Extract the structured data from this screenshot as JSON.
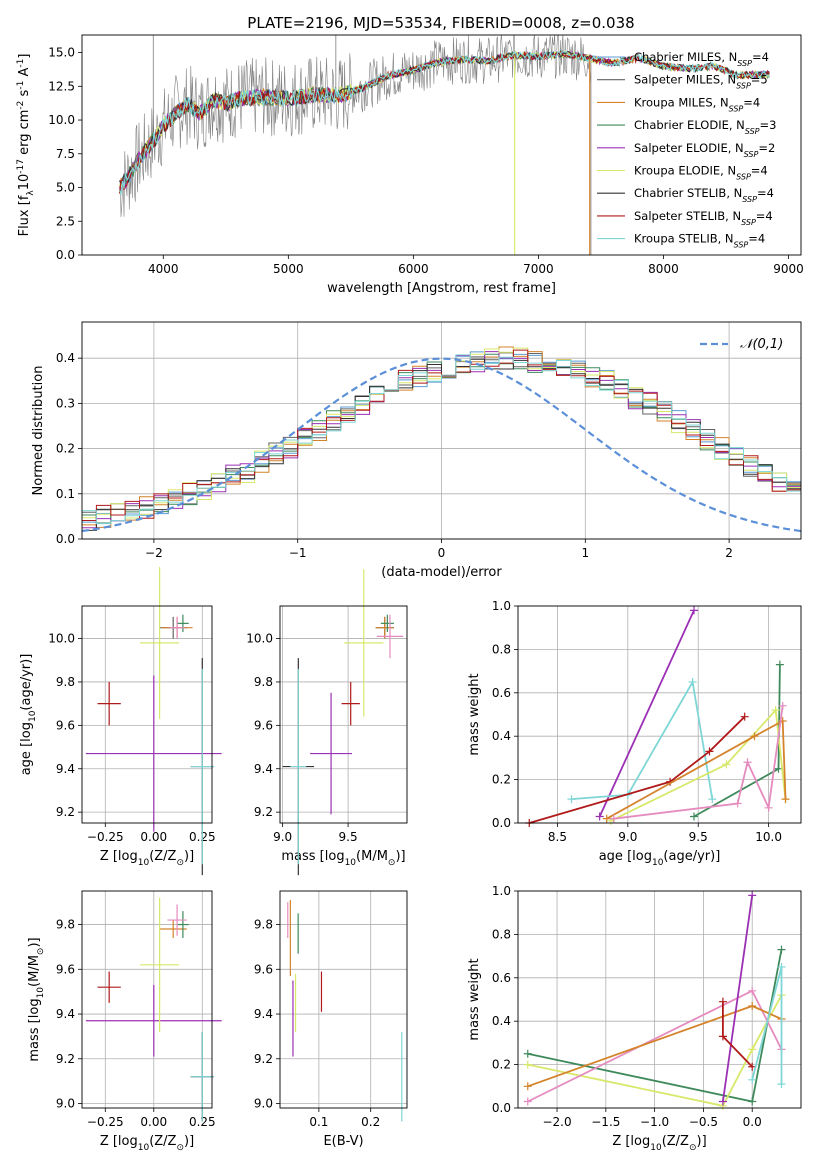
{
  "title": "PLATE=2196, MJD=53534, FIBERID=0008, z=0.038",
  "series": [
    {
      "name": "Chabrier MILES, N$_{SSP}$=4",
      "label": "Chabrier MILES, N",
      "nssp": "4",
      "color": "#5b9bd5"
    },
    {
      "name": "Salpeter MILES, N$_{SSP}$=5",
      "label": "Salpeter MILES, N",
      "nssp": "5",
      "color": "#636363"
    },
    {
      "name": "Kroupa MILES, N$_{SSP}$=4",
      "label": "Kroupa MILES, N",
      "nssp": "4",
      "color": "#d4832b"
    },
    {
      "name": "Chabrier ELODIE, N$_{SSP}$=3",
      "label": "Chabrier ELODIE, N",
      "nssp": "3",
      "color": "#3f8a5b"
    },
    {
      "name": "Salpeter ELODIE, N$_{SSP}$=2",
      "label": "Salpeter ELODIE, N",
      "nssp": "2",
      "color": "#9b30b4"
    },
    {
      "name": "Kroupa ELODIE, N$_{SSP}$=4",
      "label": "Kroupa ELODIE, N",
      "nssp": "4",
      "color": "#d8e86a"
    },
    {
      "name": "Chabrier STELIB, N$_{SSP}$=4",
      "label": "Chabrier STELIB, N",
      "nssp": "4",
      "color": "#333333"
    },
    {
      "name": "Salpeter STELIB, N$_{SSP}$=4",
      "label": "Salpeter STELIB, N",
      "nssp": "4",
      "color": "#b01a1a"
    },
    {
      "name": "Kroupa STELIB, N$_{SSP}$=4",
      "label": "Kroupa STELIB, N",
      "nssp": "4",
      "color": "#7fd6d6"
    }
  ],
  "colors": {
    "data": "#7f7f7f",
    "normal": "#5b8fd8",
    "mw_pink": "#e58bbf",
    "grid": "#b0b0b0"
  },
  "chart_data": [
    {
      "type": "line",
      "title": "PLATE=2196, MJD=53534, FIBERID=0008, z=0.038",
      "xlabel": "wavelength [Angstrom, rest frame]",
      "ylabel": "Flux [f$_\\lambda$10$^{-17}$ erg cm$^{-2}$ s$^{-1}$ A$^{-1}$]",
      "ylabel_display": "Flux [fλ10⁻¹⁷ erg cm⁻² s⁻¹ A⁻¹]",
      "xlim": [
        3350,
        9100
      ],
      "ylim": [
        0,
        16.3
      ],
      "xticks": [
        4000,
        5000,
        6000,
        7000,
        8000,
        9000
      ],
      "yticks": [
        "0.0",
        "2.5",
        "5.0",
        "7.5",
        "10.0",
        "12.5",
        "15.0"
      ],
      "continuum": {
        "x": [
          3650,
          3700,
          3800,
          3900,
          4000,
          4100,
          4200,
          4300,
          4400,
          4500,
          4600,
          4800,
          5000,
          5200,
          5400,
          5600,
          5800,
          6000,
          6200,
          6400,
          6600,
          6800,
          7000,
          7200,
          7400,
          7600,
          7800,
          8000,
          8200,
          8400,
          8600,
          8800
        ],
        "y": [
          5.0,
          5.5,
          7.0,
          8.2,
          9.5,
          10.5,
          11.2,
          10.5,
          11.5,
          11.2,
          11.6,
          11.7,
          11.6,
          11.9,
          11.8,
          12.4,
          13.3,
          13.7,
          14.3,
          14.5,
          14.4,
          14.8,
          14.7,
          14.9,
          14.6,
          14.2,
          14.6,
          14.0,
          13.8,
          14.0,
          13.3,
          13.4
        ]
      }
    },
    {
      "type": "bar",
      "xlabel": "(data-model)/error",
      "ylabel": "Normed distribution",
      "xlim": [
        -2.5,
        2.5
      ],
      "ylim": [
        0,
        0.48
      ],
      "xticks": [
        "−2",
        "−1",
        "0",
        "1",
        "2"
      ],
      "yticks": [
        "0.0",
        "0.1",
        "0.2",
        "0.3",
        "0.4"
      ],
      "bin_width": 0.1,
      "legend": "𝒩(0,1)",
      "values": [
        0.04,
        0.05,
        0.055,
        0.06,
        0.07,
        0.08,
        0.09,
        0.1,
        0.11,
        0.12,
        0.14,
        0.15,
        0.17,
        0.19,
        0.2,
        0.22,
        0.24,
        0.26,
        0.28,
        0.3,
        0.32,
        0.33,
        0.35,
        0.36,
        0.37,
        0.38,
        0.39,
        0.39,
        0.4,
        0.4,
        0.4,
        0.39,
        0.39,
        0.38,
        0.37,
        0.36,
        0.35,
        0.33,
        0.31,
        0.3,
        0.28,
        0.26,
        0.24,
        0.22,
        0.2,
        0.18,
        0.16,
        0.15,
        0.13,
        0.11
      ]
    },
    {
      "type": "scatter",
      "xlabel": "Z [log$_{10}$(Z/Z$_\\odot$)]",
      "ylabel": "age  [log$_{10}$(age/yr)]",
      "xlim": [
        -0.37,
        0.3
      ],
      "ylim": [
        9.15,
        10.15
      ],
      "xticks": [
        "−0.25",
        "0.00",
        "0.25"
      ],
      "yticks": [
        "9.2",
        "9.4",
        "9.6",
        "9.8",
        "10.0"
      ],
      "points": [
        {
          "s": 1,
          "x": 0.1,
          "y": 10.05,
          "xe": 0.07,
          "ye": 0.05
        },
        {
          "s": 2,
          "x": 0.12,
          "y": 10.05,
          "xe": 0.08,
          "ye": 0.05
        },
        {
          "s": 3,
          "x": 0.15,
          "y": 10.07,
          "xe": 0.03,
          "ye": 0.04
        },
        {
          "s": 4,
          "x": 0.0,
          "y": 9.47,
          "xe": 0.35,
          "ye": 0.36
        },
        {
          "s": 5,
          "x": 0.03,
          "y": 9.98,
          "xe": 0.1,
          "ye": 0.35
        },
        {
          "s": 6,
          "x": 0.25,
          "y": 9.41,
          "xe": 0.06,
          "ye": 0.5
        },
        {
          "s": 7,
          "x": -0.23,
          "y": 9.7,
          "xe": 0.06,
          "ye": 0.1
        },
        {
          "s": 8,
          "x": 0.25,
          "y": 9.41,
          "xe": 0.06,
          "ye": 0.45
        },
        {
          "s": 0,
          "x": 0.12,
          "y": 10.05,
          "xe": 0.04,
          "ye": 0.05
        }
      ]
    },
    {
      "type": "scatter",
      "xlabel": "mass [log$_{10}$(M/M$_\\odot$)]",
      "ylabel": "",
      "xlim": [
        8.98,
        9.95
      ],
      "ylim": [
        9.15,
        10.15
      ],
      "xticks": [
        "9.0",
        "9.5"
      ],
      "yticks": [
        "9.2",
        "9.4",
        "9.6",
        "9.8",
        "10.0"
      ],
      "points": [
        {
          "s": 1,
          "x": 9.78,
          "y": 10.05,
          "xe": 0.07,
          "ye": 0.05
        },
        {
          "s": 2,
          "x": 9.78,
          "y": 10.05,
          "xe": 0.07,
          "ye": 0.05
        },
        {
          "s": 3,
          "x": 9.8,
          "y": 10.07,
          "xe": 0.05,
          "ye": 0.04
        },
        {
          "s": 4,
          "x": 9.37,
          "y": 9.47,
          "xe": 0.16,
          "ye": 0.28
        },
        {
          "s": 5,
          "x": 9.62,
          "y": 9.98,
          "xe": 0.15,
          "ye": 0.34
        },
        {
          "s": 6,
          "x": 9.12,
          "y": 9.41,
          "xe": 0.12,
          "ye": 0.5
        },
        {
          "s": 7,
          "x": 9.52,
          "y": 9.7,
          "xe": 0.07,
          "ye": 0.1
        },
        {
          "s": 8,
          "x": 9.12,
          "y": 9.41,
          "xe": 0.06,
          "ye": 0.45
        },
        {
          "s": 0,
          "x": 9.82,
          "y": 10.01,
          "xe": 0.1,
          "ye": 0.1
        }
      ]
    },
    {
      "type": "scatter",
      "xlabel": "age  [log$_{10}$(age/yr)]",
      "ylabel": "mass weight",
      "xlim": [
        8.22,
        10.23
      ],
      "ylim": [
        0,
        1
      ],
      "xticks": [
        "8.5",
        "9.0",
        "9.5",
        "10.0"
      ],
      "yticks": [
        "0.0",
        "0.2",
        "0.4",
        "0.6",
        "0.8",
        "1.0"
      ],
      "lines": [
        {
          "s": 4,
          "x": [
            8.8,
            9.47
          ],
          "y": [
            0.03,
            0.98
          ]
        },
        {
          "s": 8,
          "x": [
            8.6,
            9.0,
            9.46,
            9.6
          ],
          "y": [
            0.11,
            0.13,
            0.65,
            0.11
          ]
        },
        {
          "s": 7,
          "x": [
            8.3,
            9.3,
            9.58,
            9.83
          ],
          "y": [
            0.0,
            0.19,
            0.33,
            0.49
          ]
        },
        {
          "s": 3,
          "x": [
            9.47,
            10.07,
            10.08
          ],
          "y": [
            0.03,
            0.25,
            0.73
          ]
        },
        {
          "s": 5,
          "x": [
            8.88,
            9.7,
            10.05,
            10.12
          ],
          "y": [
            0.01,
            0.27,
            0.52,
            0.11
          ]
        },
        {
          "s": 2,
          "x": [
            8.85,
            9.9,
            10.1,
            10.12
          ],
          "y": [
            0.02,
            0.4,
            0.47,
            0.11
          ]
        },
        {
          "s": 0,
          "x": [
            8.9,
            9.78,
            9.85,
            10.0,
            10.1
          ],
          "y": [
            0.02,
            0.09,
            0.28,
            0.07,
            0.54
          ]
        }
      ]
    },
    {
      "type": "scatter",
      "xlabel": "Z [log$_{10}$(Z/Z$_\\odot$)]",
      "ylabel": "mass [log$_{10}$(M/M$_\\odot$)]",
      "xlim": [
        -0.37,
        0.3
      ],
      "ylim": [
        8.98,
        9.95
      ],
      "xticks": [
        "−0.25",
        "0.00",
        "0.25"
      ],
      "yticks": [
        "9.0",
        "9.2",
        "9.4",
        "9.6",
        "9.8"
      ],
      "points": [
        {
          "s": 2,
          "x": 0.1,
          "y": 9.78,
          "xe": 0.07,
          "ye": 0.04
        },
        {
          "s": 3,
          "x": 0.15,
          "y": 9.8,
          "xe": 0.03,
          "ye": 0.06
        },
        {
          "s": 4,
          "x": 0.0,
          "y": 9.37,
          "xe": 0.35,
          "ye": 0.16
        },
        {
          "s": 5,
          "x": 0.03,
          "y": 9.62,
          "xe": 0.1,
          "ye": 0.3
        },
        {
          "s": 6,
          "x": 0.25,
          "y": 9.12,
          "xe": 0.06,
          "ye": 0.2
        },
        {
          "s": 7,
          "x": -0.23,
          "y": 9.52,
          "xe": 0.06,
          "ye": 0.07
        },
        {
          "s": 8,
          "x": 0.25,
          "y": 9.12,
          "xe": 0.06,
          "ye": 0.2
        },
        {
          "s": 0,
          "x": 0.12,
          "y": 9.82,
          "xe": 0.05,
          "ye": 0.07
        }
      ]
    },
    {
      "type": "scatter",
      "xlabel": "E(B-V)",
      "ylabel": "",
      "xlim": [
        0.025,
        0.27
      ],
      "ylim": [
        8.98,
        9.95
      ],
      "xticks": [
        "0.1",
        "0.2"
      ],
      "yticks": [
        "9.0",
        "9.2",
        "9.4",
        "9.6",
        "9.8"
      ],
      "points": [
        {
          "s": 0,
          "x": 0.04,
          "y": 9.82,
          "xe": 0,
          "ye": 0.08
        },
        {
          "s": 2,
          "x": 0.045,
          "y": 9.74,
          "xe": 0,
          "ye": 0.17
        },
        {
          "s": 3,
          "x": 0.06,
          "y": 9.76,
          "xe": 0,
          "ye": 0.09
        },
        {
          "s": 4,
          "x": 0.05,
          "y": 9.38,
          "xe": 0,
          "ye": 0.17
        },
        {
          "s": 5,
          "x": 0.055,
          "y": 9.45,
          "xe": 0,
          "ye": 0.13
        },
        {
          "s": 7,
          "x": 0.105,
          "y": 9.5,
          "xe": 0,
          "ye": 0.09
        },
        {
          "s": 8,
          "x": 0.26,
          "y": 9.12,
          "xe": 0,
          "ye": 0.2
        }
      ]
    },
    {
      "type": "scatter",
      "xlabel": "Z [log$_{10}$(Z/Z$_\\odot$)]",
      "ylabel": "mass weight",
      "xlim": [
        -2.4,
        0.5
      ],
      "ylim": [
        0,
        1
      ],
      "xticks": [
        "−2.0",
        "−1.5",
        "−1.0",
        "−0.5",
        "0.0"
      ],
      "yticks": [
        "0.0",
        "0.2",
        "0.4",
        "0.6",
        "0.8",
        "1.0"
      ],
      "lines": [
        {
          "s": 3,
          "x": [
            -2.3,
            0.0,
            0.3
          ],
          "y": [
            0.25,
            0.03,
            0.73
          ]
        },
        {
          "s": 5,
          "x": [
            -2.3,
            -0.3,
            0.0,
            0.3
          ],
          "y": [
            0.2,
            0.01,
            0.27,
            0.52
          ]
        },
        {
          "s": 0,
          "x": [
            -2.3,
            0.0,
            0.3
          ],
          "y": [
            0.03,
            0.54,
            0.27
          ]
        },
        {
          "s": 2,
          "x": [
            -2.3,
            0.0,
            0.3
          ],
          "y": [
            0.1,
            0.47,
            0.41
          ]
        },
        {
          "s": 4,
          "x": [
            -0.3,
            0.0
          ],
          "y": [
            0.03,
            0.98
          ]
        },
        {
          "s": 7,
          "x": [
            -0.3,
            -0.3,
            0.0
          ],
          "y": [
            0.49,
            0.33,
            0.19
          ]
        },
        {
          "s": 8,
          "x": [
            0.0,
            0.3,
            0.3
          ],
          "y": [
            0.13,
            0.65,
            0.11
          ]
        }
      ]
    }
  ]
}
